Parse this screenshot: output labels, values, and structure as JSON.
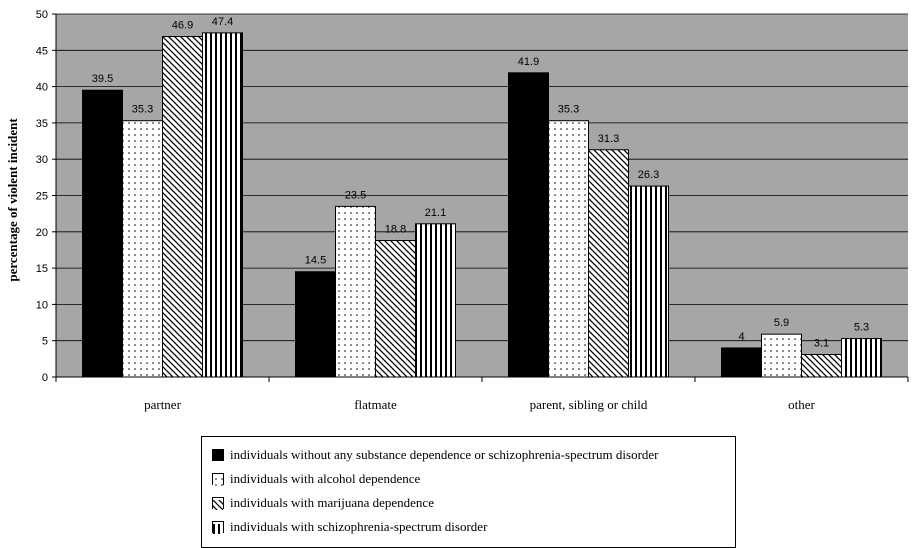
{
  "chart_data": {
    "type": "bar",
    "categories": [
      "partner",
      "flatmate",
      "parent, sibling or child",
      "other"
    ],
    "ylabel": "percentage of violent incident",
    "ylim": [
      0,
      50
    ],
    "yticks": [
      0,
      5,
      10,
      15,
      20,
      25,
      30,
      35,
      40,
      45,
      50
    ],
    "grid": true,
    "legend_position": "bottom",
    "series": [
      {
        "name": "individuals without any substance dependence or schizophrenia-spectrum disorder",
        "pattern": "solid",
        "values": [
          39.5,
          14.5,
          41.9,
          4
        ]
      },
      {
        "name": "individuals with alcohol dependence",
        "pattern": "dots",
        "values": [
          35.3,
          23.5,
          35.3,
          5.9
        ]
      },
      {
        "name": "individuals with marijuana dependence",
        "pattern": "diagonal",
        "values": [
          46.9,
          18.8,
          31.3,
          3.1
        ]
      },
      {
        "name": "individuals with schizophrenia-spectrum disorder",
        "pattern": "vertical",
        "values": [
          47.4,
          21.1,
          26.3,
          5.3
        ]
      }
    ],
    "colors": {
      "plot_background": "#a6a6a6",
      "bar_fill": "#000000",
      "pattern_background": "#ffffff"
    }
  }
}
